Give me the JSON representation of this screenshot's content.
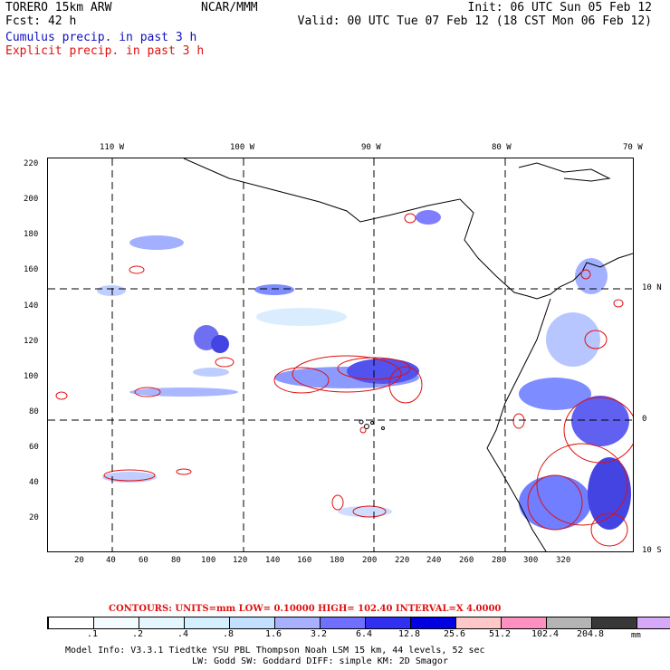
{
  "header": {
    "model": "TORERO  15km ARW",
    "org": "NCAR/MMM",
    "init": "Init: 06 UTC Sun 05 Feb 12",
    "fcst": "Fcst:   42 h",
    "valid": "Valid: 00 UTC Tue 07 Feb 12 (18 CST Mon 06 Feb 12)",
    "cumulus": "Cumulus precip. in past 3 h",
    "explicit": "Explicit precip. in past 3 h"
  },
  "map": {
    "top_lon_labels": [
      "110 W",
      "100 W",
      "90 W",
      "80 W",
      "70 W"
    ],
    "right_lat_labels": [
      "10 N",
      "0",
      "10 S"
    ],
    "left_ticks": [
      "220",
      "200",
      "180",
      "160",
      "140",
      "120",
      "100",
      "80",
      "60",
      "40",
      "20"
    ],
    "bottom_ticks": [
      "20",
      "40",
      "60",
      "80",
      "100",
      "120",
      "140",
      "160",
      "180",
      "200",
      "220",
      "240",
      "260",
      "280",
      "300",
      "320"
    ]
  },
  "colorbar": {
    "contours_label": "CONTOURS:  UNITS=mm  LOW= 0.10000      HIGH=  102.40       INTERVAL=X  4.0000",
    "levels": [
      ".1",
      ".2",
      ".4",
      ".8",
      "1.6",
      "3.2",
      "6.4",
      "12.8",
      "25.6",
      "51.2",
      "102.4",
      "204.8"
    ],
    "units": "mm",
    "colors": [
      "#ffffff",
      "#f4fbff",
      "#e6f6ff",
      "#d4f0ff",
      "#c2e0ff",
      "#a8b0ff",
      "#7070ff",
      "#3030f0",
      "#0000e0",
      "#ffc8c8",
      "#ff90c0",
      "#b4b4b4",
      "#383838",
      "#d8a8f8"
    ]
  },
  "footer": {
    "line1": "Model Info: V3.3.1     Tiedtke YSU PBL  Thompson     Noah LSM  15 km,    44 levels,    52 sec",
    "line2": "LW: Godd SW: Goddard DIFF: simple KM: 2D Smagor"
  }
}
